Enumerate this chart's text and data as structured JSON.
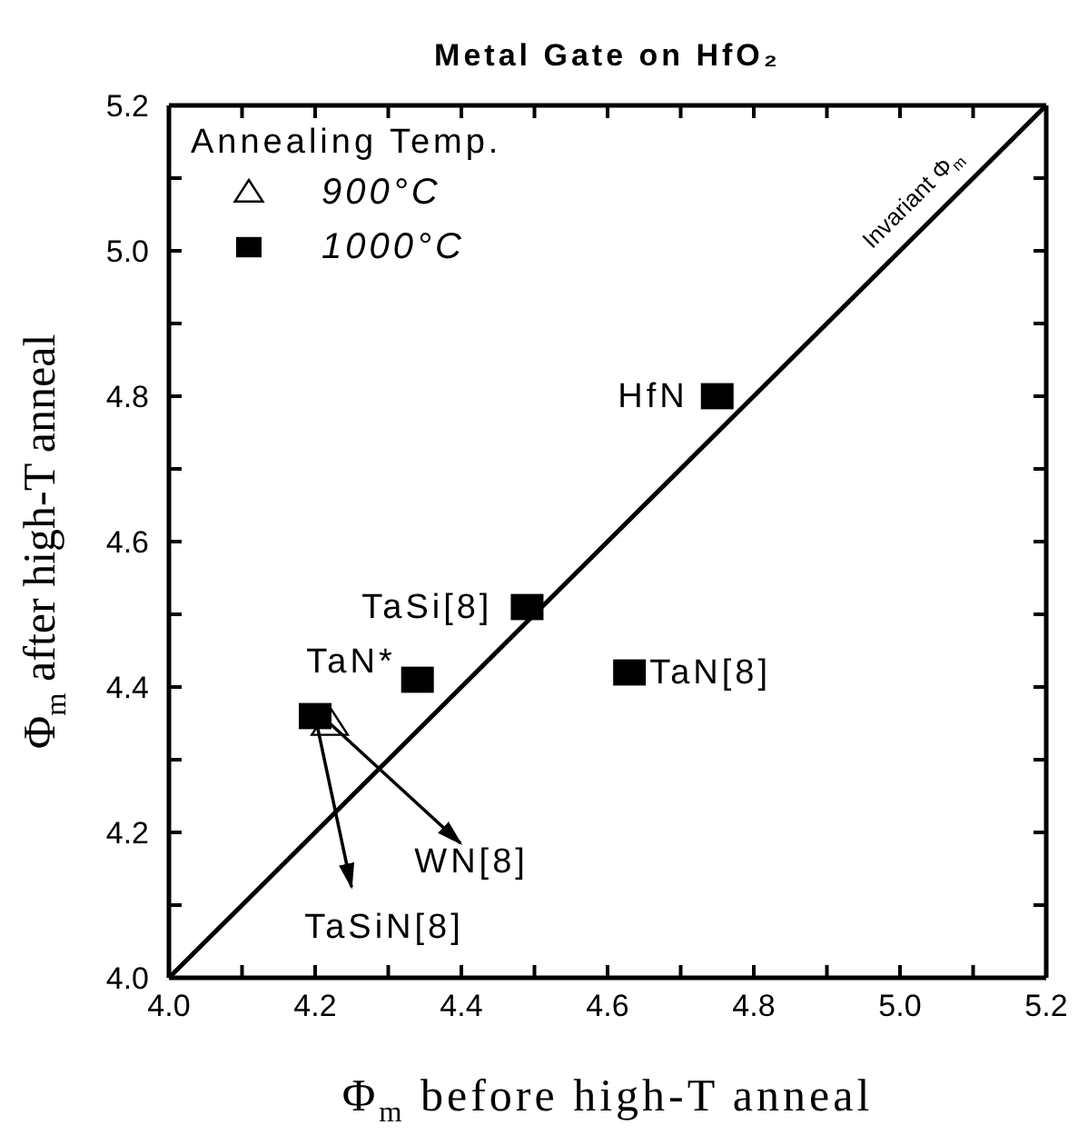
{
  "chart_data": {
    "type": "scatter",
    "title": "Metal Gate on HfO₂",
    "xlabel": "Φ$_{m}$ before high-T anneal",
    "ylabel": "Φ$_{m}$ after high-T anneal",
    "legend_title": "Annealing Temp.",
    "xlim": [
      4.0,
      5.2
    ],
    "ylim": [
      4.0,
      5.2
    ],
    "xticks": [
      {
        "value": 4.0,
        "label": "4.0"
      },
      {
        "value": 4.1,
        "label": null
      },
      4.2,
      {
        "value": 4.3,
        "label": null
      },
      4.4,
      {
        "value": 4.5,
        "label": null
      },
      4.6,
      {
        "value": 4.7,
        "label": null
      },
      4.8,
      {
        "value": 4.9,
        "label": null
      },
      {
        "value": 5.0,
        "label": "5.0"
      },
      {
        "value": 5.1,
        "label": null
      },
      5.2
    ],
    "yticks": [
      {
        "value": 4.0,
        "label": "4.0"
      },
      {
        "value": 4.1,
        "label": null
      },
      4.2,
      {
        "value": 4.3,
        "label": null
      },
      4.4,
      {
        "value": 4.5,
        "label": null
      },
      4.6,
      {
        "value": 4.7,
        "label": null
      },
      4.8,
      {
        "value": 4.9,
        "label": null
      },
      {
        "value": 5.0,
        "label": "5.0"
      },
      {
        "value": 5.1,
        "label": null
      },
      5.2
    ],
    "legend": "top left",
    "series": [
      {
        "name": "900°C",
        "color": "#000000",
        "marker": "triangle",
        "x": [
          4.22
        ],
        "values": [
          4.35
        ]
      },
      {
        "name": "1000°C",
        "color": "#000000",
        "marker": "square",
        "x": [
          4.75,
          4.49,
          4.34,
          4.63,
          4.2
        ],
        "values": [
          4.8,
          4.51,
          4.41,
          4.42,
          4.36
        ]
      },
      {
        "type": "line",
        "color": "#000000",
        "marker": "none",
        "x": [
          4.0,
          5.2
        ],
        "values": [
          4.0,
          5.2
        ]
      }
    ],
    "annotations": [
      "Invariant Φ$_{m}$",
      {
        "text": "HfN",
        "x": 4.75,
        "y": 4.8
      },
      {
        "text": "TaSi[8]",
        "x": 4.49,
        "y": 4.51
      },
      {
        "text": "TaN*",
        "x": 4.34,
        "y": 4.41
      },
      {
        "text": "TaN[8]",
        "x": 4.63,
        "y": 4.42
      },
      {
        "text": "WN[8]",
        "x": 4.22,
        "y": 4.35
      },
      {
        "text": "TaSiN[8]",
        "x": 4.2,
        "y": 4.36
      }
    ]
  }
}
